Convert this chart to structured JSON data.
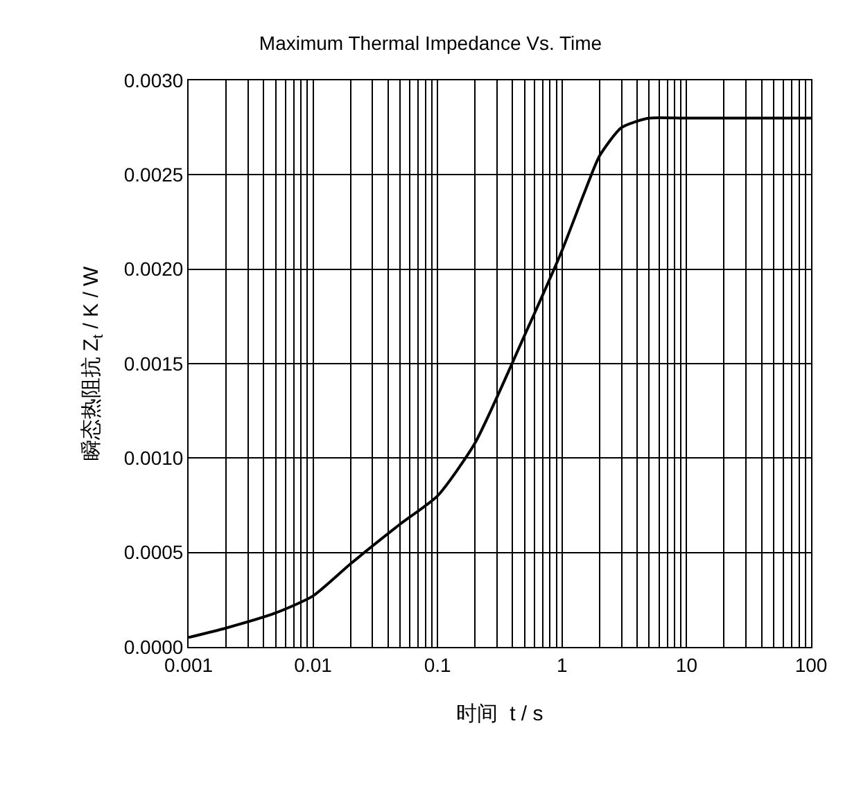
{
  "chart_data": {
    "type": "line",
    "title": "Maximum Thermal Impedance Vs. Time",
    "xlabel": "时间  t / s",
    "ylabel": "瞬态热阻抗 Z$_{t}$ / K / W",
    "log": "x",
    "grid": true,
    "legend": false,
    "marker": "none",
    "line_style": "solid",
    "x": [
      0.001,
      0.002,
      0.005,
      0.01,
      0.02,
      0.05,
      0.1,
      0.2,
      0.5,
      1,
      1.5,
      2,
      3,
      5,
      10,
      100
    ],
    "series": [
      {
        "color": "#000000",
        "values": [
          5e-05,
          0.0001,
          0.00018,
          0.00027,
          0.00044,
          0.00065,
          0.0008,
          0.00108,
          0.00165,
          0.0021,
          0.0024,
          0.0026,
          0.00275,
          0.0028,
          0.0028,
          0.0028
        ]
      }
    ],
    "xlim": [
      0.001,
      100
    ],
    "ylim": [
      0,
      0.003
    ],
    "xticks": [
      0.001,
      {
        "value": 0.002,
        "label": null
      },
      {
        "value": 0.003,
        "label": null
      },
      {
        "value": 0.004,
        "label": null
      },
      {
        "value": 0.005,
        "label": null
      },
      {
        "value": 0.006,
        "label": null
      },
      {
        "value": 0.007,
        "label": null
      },
      {
        "value": 0.008,
        "label": null
      },
      {
        "value": 0.009,
        "label": null
      },
      0.01,
      {
        "value": 0.02,
        "label": null
      },
      {
        "value": 0.03,
        "label": null
      },
      {
        "value": 0.04,
        "label": null
      },
      {
        "value": 0.05,
        "label": null
      },
      {
        "value": 0.06,
        "label": null
      },
      {
        "value": 0.07,
        "label": null
      },
      {
        "value": 0.08,
        "label": null
      },
      {
        "value": 0.09,
        "label": null
      },
      0.1,
      {
        "value": 0.2,
        "label": null
      },
      {
        "value": 0.3,
        "label": null
      },
      {
        "value": 0.4,
        "label": null
      },
      {
        "value": 0.5,
        "label": null
      },
      {
        "value": 0.6,
        "label": null
      },
      {
        "value": 0.7,
        "label": null
      },
      {
        "value": 0.8,
        "label": null
      },
      {
        "value": 0.9,
        "label": null
      },
      1,
      {
        "value": 2,
        "label": null
      },
      {
        "value": 3,
        "label": null
      },
      {
        "value": 4,
        "label": null
      },
      {
        "value": 5,
        "label": null
      },
      {
        "value": 6,
        "label": null
      },
      {
        "value": 7,
        "label": null
      },
      {
        "value": 8,
        "label": null
      },
      {
        "value": 9,
        "label": null
      },
      10,
      {
        "value": 20,
        "label": null
      },
      {
        "value": 30,
        "label": null
      },
      {
        "value": 40,
        "label": null
      },
      {
        "value": 50,
        "label": null
      },
      {
        "value": 60,
        "label": null
      },
      {
        "value": 70,
        "label": null
      },
      {
        "value": 80,
        "label": null
      },
      {
        "value": 90,
        "label": null
      },
      100
    ],
    "yticks": [
      {
        "value": 0,
        "label": "0.0000"
      },
      {
        "value": 0.0005,
        "label": "0.0005"
      },
      {
        "value": 0.001,
        "label": "0.0010"
      },
      {
        "value": 0.0015,
        "label": "0.0015"
      },
      {
        "value": 0.002,
        "label": "0.0020"
      },
      {
        "value": 0.0025,
        "label": "0.0025"
      },
      {
        "value": 0.003,
        "label": "0.0030"
      }
    ]
  }
}
